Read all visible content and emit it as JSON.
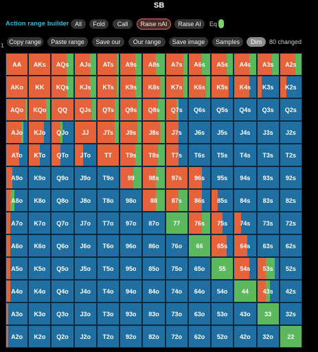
{
  "header": {
    "title": "SB"
  },
  "toolbar": {
    "title": "Action range builder",
    "buttons": [
      "All",
      "Fold",
      "Call",
      "Raise nAI",
      "Raise AI"
    ],
    "eq_label": "Eq"
  },
  "tools": {
    "buttons": [
      "Copy range",
      "Paste range",
      "Save our",
      "Our range",
      "Save image",
      "Samples",
      "Dim"
    ],
    "status": "80 changed"
  },
  "side_label": "1",
  "grid": {
    "rows": [
      [
        "AA",
        "AKs",
        "AQs",
        "AJs",
        "ATs",
        "A9s",
        "A8s",
        "A7s",
        "A6s",
        "A5s",
        "A4s",
        "A3s",
        "A2s"
      ],
      [
        "AKo",
        "KK",
        "KQs",
        "KJs",
        "KTs",
        "K9s",
        "K8s",
        "K7s",
        "K6s",
        "K5s",
        "K4s",
        "K3s",
        "K2s"
      ],
      [
        "AQo",
        "KQo",
        "QQ",
        "QJs",
        "QTs",
        "Q9s",
        "Q8s",
        "Q7s",
        "Q6s",
        "Q5s",
        "Q4s",
        "Q3s",
        "Q2s"
      ],
      [
        "AJo",
        "KJo",
        "QJo",
        "JJ",
        "JTs",
        "J9s",
        "J8s",
        "J7s",
        "J6s",
        "J5s",
        "J4s",
        "J3s",
        "J2s"
      ],
      [
        "ATo",
        "KTo",
        "QTo",
        "JTo",
        "TT",
        "T9s",
        "T8s",
        "T7s",
        "T6s",
        "T5s",
        "T4s",
        "T3s",
        "T2s"
      ],
      [
        "A9o",
        "K9o",
        "Q9o",
        "J9o",
        "T9o",
        "99",
        "98s",
        "97s",
        "96s",
        "95s",
        "94s",
        "93s",
        "92s"
      ],
      [
        "A8o",
        "K8o",
        "Q8o",
        "J8o",
        "T8o",
        "98o",
        "88",
        "87s",
        "86s",
        "85s",
        "84s",
        "83s",
        "82s"
      ],
      [
        "A7o",
        "K7o",
        "Q7o",
        "J7o",
        "T7o",
        "97o",
        "87o",
        "77",
        "76s",
        "75s",
        "74s",
        "73s",
        "72s"
      ],
      [
        "A6o",
        "K6o",
        "Q6o",
        "J6o",
        "T6o",
        "96o",
        "86o",
        "76o",
        "66",
        "65s",
        "64s",
        "63s",
        "62s"
      ],
      [
        "A5o",
        "K5o",
        "Q5o",
        "J5o",
        "T5o",
        "95o",
        "85o",
        "75o",
        "65o",
        "55",
        "54s",
        "53s",
        "52s"
      ],
      [
        "A4o",
        "K4o",
        "Q4o",
        "J4o",
        "T4o",
        "94o",
        "84o",
        "74o",
        "64o",
        "54o",
        "44",
        "43s",
        "42s"
      ],
      [
        "A3o",
        "K3o",
        "Q3o",
        "J3o",
        "T3o",
        "93o",
        "83o",
        "73o",
        "63o",
        "53o",
        "43o",
        "33",
        "32s"
      ],
      [
        "A2o",
        "K2o",
        "Q2o",
        "J2o",
        "T2o",
        "92o",
        "82o",
        "72o",
        "62o",
        "52o",
        "42o",
        "32o",
        "22"
      ]
    ]
  }
}
